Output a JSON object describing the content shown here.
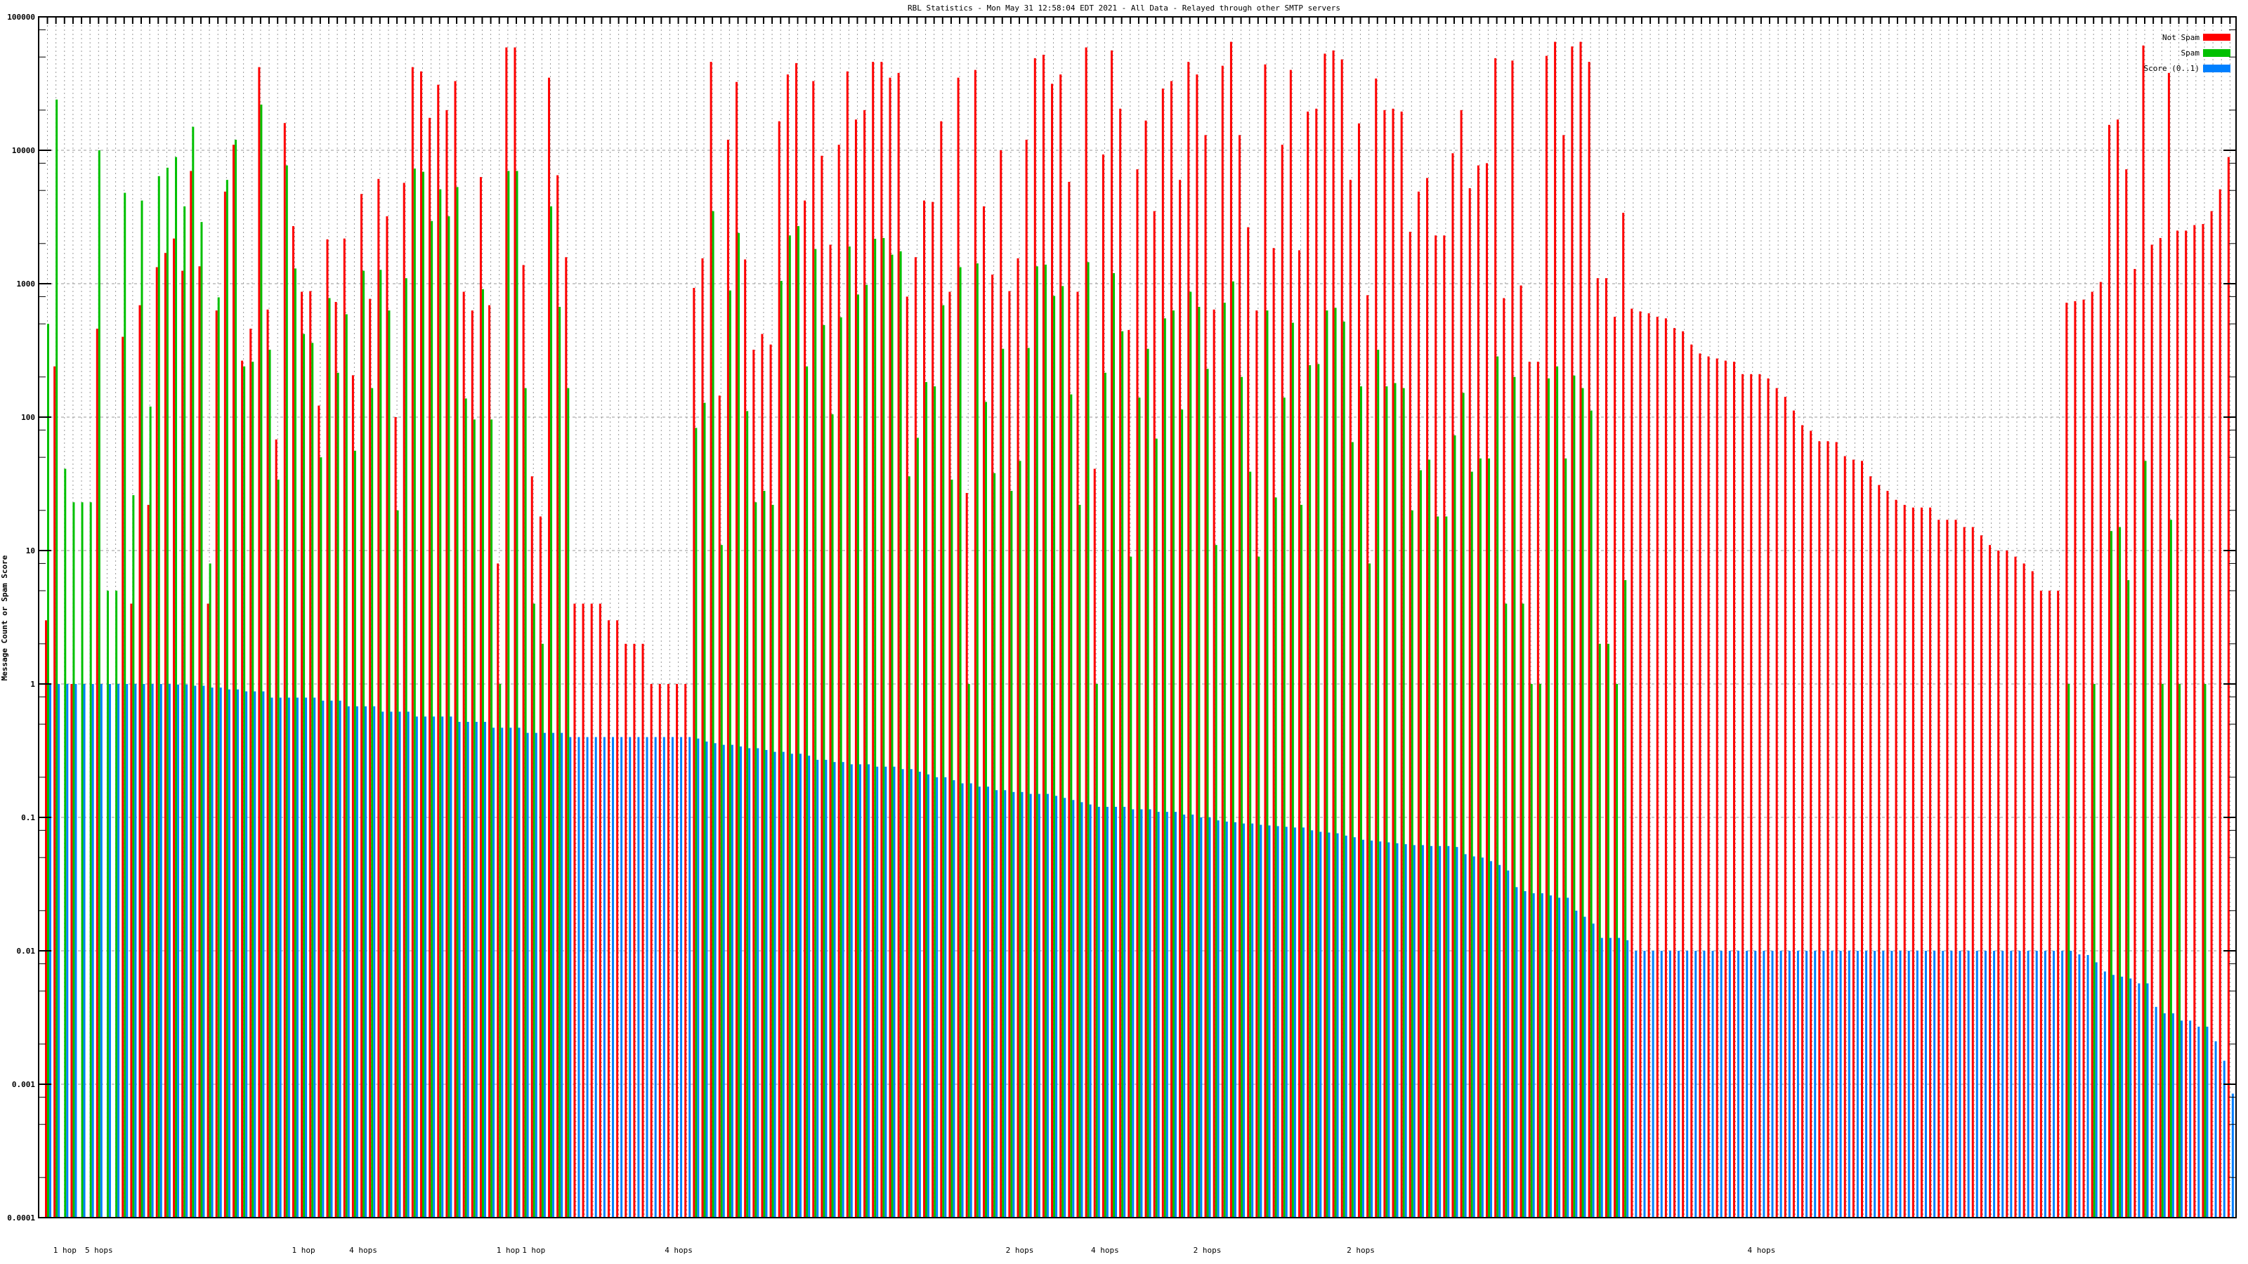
{
  "chart_data": {
    "type": "bar",
    "title": "RBL Statistics - Mon May 31 12:58:04 EDT 2021 - All Data - Relayed through other SMTP servers",
    "xlabel": "",
    "ylabel": "Message Count or Spam Score",
    "yscale": "log",
    "ylim": [
      0.0001,
      100000
    ],
    "y_tick_labels": [
      "100000",
      "10000",
      "1000",
      "100",
      "10",
      "1",
      "0.1",
      "0.01",
      "0.001",
      "0.0001"
    ],
    "grid": true,
    "legend_position": "top-right",
    "group_count": 257,
    "x_label_fragments": [
      {
        "label": "1 hop",
        "group": 3
      },
      {
        "label": "5 hops",
        "group": 7
      },
      {
        "label": "1 hop",
        "group": 31
      },
      {
        "label": "4 hops",
        "group": 38
      },
      {
        "label": "1 hop",
        "group": 55
      },
      {
        "label": "1 hop",
        "group": 58
      },
      {
        "label": "4 hops",
        "group": 75
      },
      {
        "label": "2 hops",
        "group": 115
      },
      {
        "label": "4 hops",
        "group": 125
      },
      {
        "label": "2 hops",
        "group": 137
      },
      {
        "label": "2 hops",
        "group": 155
      },
      {
        "label": "4 hops",
        "group": 202
      }
    ],
    "series": [
      {
        "name": "Not Spam",
        "color": "#ff0000",
        "values": [
          3,
          240,
          null,
          1,
          null,
          null,
          460,
          null,
          null,
          400,
          4,
          690,
          22,
          1330,
          1700,
          2180,
          1250,
          7000,
          1350,
          4,
          630,
          4900,
          11000,
          265,
          460,
          42000,
          640,
          68,
          16000,
          2700,
          870,
          880,
          122,
          2150,
          730,
          2180,
          206,
          4700,
          770,
          6100,
          3200,
          100,
          5700,
          42000,
          39000,
          17500,
          31000,
          20000,
          33000,
          870,
          630,
          6300,
          690,
          8,
          59000,
          59000,
          1380,
          36,
          18,
          35000,
          6500,
          1580,
          4,
          4,
          4,
          4,
          3,
          3,
          2,
          2,
          2,
          1,
          1,
          1,
          1,
          1,
          930,
          1550,
          46000,
          145,
          12000,
          32500,
          1520,
          320,
          420,
          350,
          16500,
          37000,
          45000,
          4200,
          33000,
          9100,
          1960,
          11000,
          39000,
          17000,
          20000,
          46000,
          46000,
          35000,
          38000,
          800,
          1580,
          4200,
          4100,
          16500,
          870,
          35000,
          27,
          40000,
          3800,
          1170,
          10000,
          880,
          1550,
          12000,
          49000,
          52000,
          31500,
          37000,
          5800,
          870,
          59000,
          41,
          9300,
          56000,
          20500,
          450,
          7200,
          16700,
          3500,
          29000,
          33000,
          6000,
          46000,
          37000,
          13000,
          640,
          43000,
          65000,
          13000,
          2650,
          630,
          44000,
          1850,
          11000,
          40000,
          1780,
          19500,
          20500,
          53000,
          56000,
          48000,
          6000,
          15900,
          820,
          34500,
          20000,
          20500,
          19500,
          2450,
          4900,
          6200,
          2300,
          2300,
          9500,
          20000,
          5200,
          7700,
          8000,
          49000,
          780,
          47000,
          970,
          260,
          260,
          51000,
          65000,
          13000,
          60000,
          65000,
          46000,
          1100,
          1100,
          565,
          3400,
          650,
          620,
          600,
          565,
          550,
          465,
          440,
          350,
          300,
          285,
          275,
          265,
          260,
          210,
          210,
          210,
          195,
          165,
          142,
          112,
          87,
          79,
          66,
          66,
          65,
          51,
          48,
          47,
          36,
          31,
          28,
          24,
          22,
          21,
          21,
          21,
          17,
          17,
          17,
          15,
          15,
          13,
          11,
          10,
          10,
          9,
          8,
          7,
          5,
          5,
          5,
          720,
          740,
          760,
          870,
          1030,
          15500,
          17000,
          7200,
          1290,
          61000,
          1960,
          2200,
          38000,
          2500,
          2500,
          2750,
          2800,
          3500,
          5100,
          8900
        ]
      },
      {
        "name": "Spam",
        "color": "#00c000",
        "values": [
          500,
          24000,
          41,
          23,
          23,
          23,
          10000,
          5,
          5,
          4800,
          26,
          4200,
          120,
          6400,
          7400,
          8900,
          3800,
          15000,
          2900,
          8,
          790,
          6000,
          12000,
          240,
          260,
          22000,
          320,
          34,
          7700,
          1300,
          420,
          360,
          50,
          780,
          215,
          590,
          56,
          1250,
          165,
          1270,
          630,
          20,
          1100,
          7300,
          6900,
          2950,
          5100,
          3200,
          5300,
          138,
          96,
          910,
          96,
          1,
          7000,
          7000,
          165,
          4,
          2,
          3800,
          670,
          165,
          null,
          null,
          null,
          null,
          null,
          null,
          null,
          null,
          null,
          null,
          null,
          null,
          null,
          null,
          83,
          128,
          3500,
          11,
          890,
          2400,
          111,
          23,
          28,
          22,
          1050,
          2300,
          2700,
          240,
          1820,
          490,
          105,
          560,
          1900,
          830,
          980,
          2170,
          2200,
          1650,
          1750,
          36,
          70,
          183,
          170,
          690,
          34,
          1330,
          1,
          1420,
          130,
          38,
          325,
          28,
          47,
          330,
          1350,
          1390,
          810,
          960,
          148,
          22,
          1450,
          1,
          215,
          1200,
          440,
          9,
          140,
          325,
          69,
          550,
          630,
          114,
          870,
          670,
          230,
          11,
          720,
          1040,
          200,
          39,
          9,
          630,
          25,
          140,
          510,
          22,
          245,
          250,
          630,
          660,
          520,
          65,
          170,
          8,
          320,
          170,
          180,
          165,
          20,
          40,
          48,
          18,
          18,
          73,
          152,
          39,
          49,
          49,
          285,
          4,
          200,
          4,
          1,
          1,
          195,
          240,
          49,
          205,
          165,
          112,
          2,
          2,
          1,
          6,
          null,
          null,
          null,
          null,
          null,
          null,
          null,
          null,
          null,
          null,
          null,
          null,
          null,
          null,
          null,
          null,
          null,
          null,
          null,
          null,
          null,
          null,
          null,
          null,
          null,
          null,
          null,
          null,
          null,
          null,
          null,
          null,
          null,
          null,
          null,
          null,
          null,
          null,
          null,
          null,
          null,
          null,
          null,
          null,
          null,
          null,
          null,
          null,
          null,
          null,
          null,
          1,
          null,
          null,
          1,
          null,
          14,
          15,
          6,
          null,
          47,
          null,
          1,
          17,
          1,
          null,
          null,
          1,
          null,
          null,
          null
        ]
      },
      {
        "name": "Score (0..1)",
        "color": "#0080ff",
        "values": [
          1,
          1,
          1,
          1,
          1,
          1,
          1,
          1,
          1,
          1,
          1,
          1,
          1,
          1,
          1,
          0.99,
          0.99,
          0.97,
          0.97,
          0.94,
          0.94,
          0.91,
          0.91,
          0.88,
          0.88,
          0.88,
          0.79,
          0.79,
          0.79,
          0.79,
          0.79,
          0.79,
          0.75,
          0.75,
          0.75,
          0.68,
          0.68,
          0.68,
          0.68,
          0.62,
          0.62,
          0.62,
          0.62,
          0.57,
          0.57,
          0.57,
          0.57,
          0.57,
          0.52,
          0.52,
          0.52,
          0.52,
          0.47,
          0.47,
          0.47,
          0.47,
          0.43,
          0.43,
          0.43,
          0.43,
          0.43,
          0.4,
          0.4,
          0.4,
          0.4,
          0.4,
          0.4,
          0.4,
          0.4,
          0.4,
          0.4,
          0.4,
          0.4,
          0.4,
          0.4,
          0.4,
          0.39,
          0.37,
          0.36,
          0.35,
          0.35,
          0.34,
          0.33,
          0.33,
          0.32,
          0.31,
          0.31,
          0.3,
          0.3,
          0.29,
          0.27,
          0.27,
          0.26,
          0.26,
          0.25,
          0.25,
          0.25,
          0.24,
          0.24,
          0.24,
          0.23,
          0.23,
          0.22,
          0.21,
          0.2,
          0.2,
          0.19,
          0.18,
          0.18,
          0.17,
          0.17,
          0.16,
          0.16,
          0.155,
          0.155,
          0.15,
          0.15,
          0.15,
          0.145,
          0.14,
          0.135,
          0.13,
          0.125,
          0.12,
          0.12,
          0.12,
          0.12,
          0.115,
          0.115,
          0.115,
          0.11,
          0.11,
          0.11,
          0.105,
          0.105,
          0.1,
          0.1,
          0.095,
          0.093,
          0.092,
          0.09,
          0.09,
          0.088,
          0.087,
          0.086,
          0.085,
          0.084,
          0.084,
          0.08,
          0.078,
          0.077,
          0.076,
          0.073,
          0.071,
          0.068,
          0.067,
          0.066,
          0.065,
          0.064,
          0.063,
          0.062,
          0.062,
          0.061,
          0.061,
          0.061,
          0.06,
          0.053,
          0.051,
          0.05,
          0.047,
          0.044,
          0.04,
          0.03,
          0.028,
          0.027,
          0.027,
          0.026,
          0.025,
          0.025,
          0.02,
          0.018,
          0.016,
          0.0125,
          0.0125,
          0.0125,
          0.012,
          0.01,
          0.01,
          0.01,
          0.01,
          0.01,
          0.01,
          0.01,
          0.01,
          0.01,
          0.01,
          0.01,
          0.01,
          0.01,
          0.01,
          0.01,
          0.01,
          0.01,
          0.01,
          0.01,
          0.01,
          0.01,
          0.01,
          0.01,
          0.01,
          0.01,
          0.01,
          0.01,
          0.01,
          0.01,
          0.01,
          0.01,
          0.01,
          0.01,
          0.01,
          0.01,
          0.01,
          0.01,
          0.01,
          0.01,
          0.01,
          0.01,
          0.01,
          0.01,
          0.01,
          0.01,
          0.01,
          0.01,
          0.01,
          0.01,
          0.01,
          0.01,
          0.01,
          0.0094,
          0.0093,
          0.0082,
          0.007,
          0.0066,
          0.0064,
          0.0062,
          0.0057,
          0.0057,
          0.0038,
          0.0034,
          0.0034,
          0.003,
          0.003,
          0.0027,
          0.0027,
          0.0021,
          0.0015,
          0.00085
        ]
      }
    ]
  }
}
